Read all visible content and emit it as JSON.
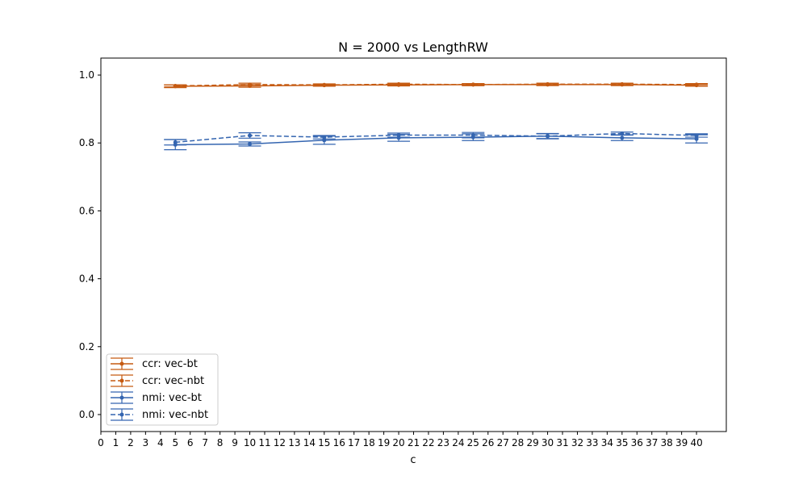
{
  "chart_data": {
    "type": "line",
    "title": "N = 2000 vs LengthRW",
    "xlabel": "c",
    "ylabel": "",
    "xlim": [
      0,
      42
    ],
    "ylim": [
      -0.05,
      1.05
    ],
    "x_ticks": [
      0,
      1,
      2,
      3,
      4,
      5,
      6,
      7,
      8,
      9,
      10,
      11,
      12,
      13,
      14,
      15,
      16,
      17,
      18,
      19,
      20,
      21,
      22,
      23,
      24,
      25,
      26,
      27,
      28,
      29,
      30,
      31,
      32,
      33,
      34,
      35,
      36,
      37,
      38,
      39,
      40
    ],
    "x_tick_labels": [
      "0",
      "1",
      "2",
      "3",
      "4",
      "5",
      "6",
      "7",
      "8",
      "9",
      "10",
      "11",
      "12",
      "13",
      "14",
      "15",
      "16",
      "17",
      "18",
      "19",
      "20",
      "21",
      "22",
      "23",
      "24",
      "25",
      "26",
      "27",
      "28",
      "29",
      "30",
      "31",
      "32",
      "33",
      "34",
      "35",
      "36",
      "37",
      "38",
      "39",
      "40"
    ],
    "y_ticks": [
      0.0,
      0.2,
      0.4,
      0.6,
      0.8,
      1.0
    ],
    "y_tick_labels": [
      "0.0",
      "0.2",
      "0.4",
      "0.6",
      "0.8",
      "1.0"
    ],
    "grid": false,
    "legend_position": "lower-left",
    "x": [
      5,
      10,
      15,
      20,
      25,
      30,
      35,
      40
    ],
    "series": [
      {
        "name": "ccr: vec-bt",
        "color": "#c55a11",
        "dash": "solid",
        "values": [
          0.967,
          0.968,
          0.97,
          0.971,
          0.972,
          0.972,
          0.972,
          0.97
        ],
        "errors": [
          0.004,
          0.004,
          0.003,
          0.003,
          0.003,
          0.003,
          0.003,
          0.003
        ]
      },
      {
        "name": "ccr: vec-nbt",
        "color": "#c55a11",
        "dash": "dashed",
        "values": [
          0.968,
          0.972,
          0.971,
          0.973,
          0.972,
          0.973,
          0.973,
          0.972
        ],
        "errors": [
          0.003,
          0.004,
          0.003,
          0.003,
          0.003,
          0.003,
          0.003,
          0.003
        ]
      },
      {
        "name": "nmi: vec-bt",
        "color": "#3465b0",
        "dash": "solid",
        "values": [
          0.795,
          0.797,
          0.808,
          0.815,
          0.817,
          0.82,
          0.815,
          0.812
        ],
        "errors": [
          0.015,
          0.006,
          0.012,
          0.01,
          0.01,
          0.008,
          0.008,
          0.012
        ]
      },
      {
        "name": "nmi: vec-nbt",
        "color": "#3465b0",
        "dash": "dashed",
        "values": [
          0.802,
          0.822,
          0.817,
          0.823,
          0.823,
          0.82,
          0.828,
          0.822
        ],
        "errors": [
          0.008,
          0.008,
          0.005,
          0.006,
          0.008,
          0.007,
          0.004,
          0.005
        ]
      }
    ]
  }
}
